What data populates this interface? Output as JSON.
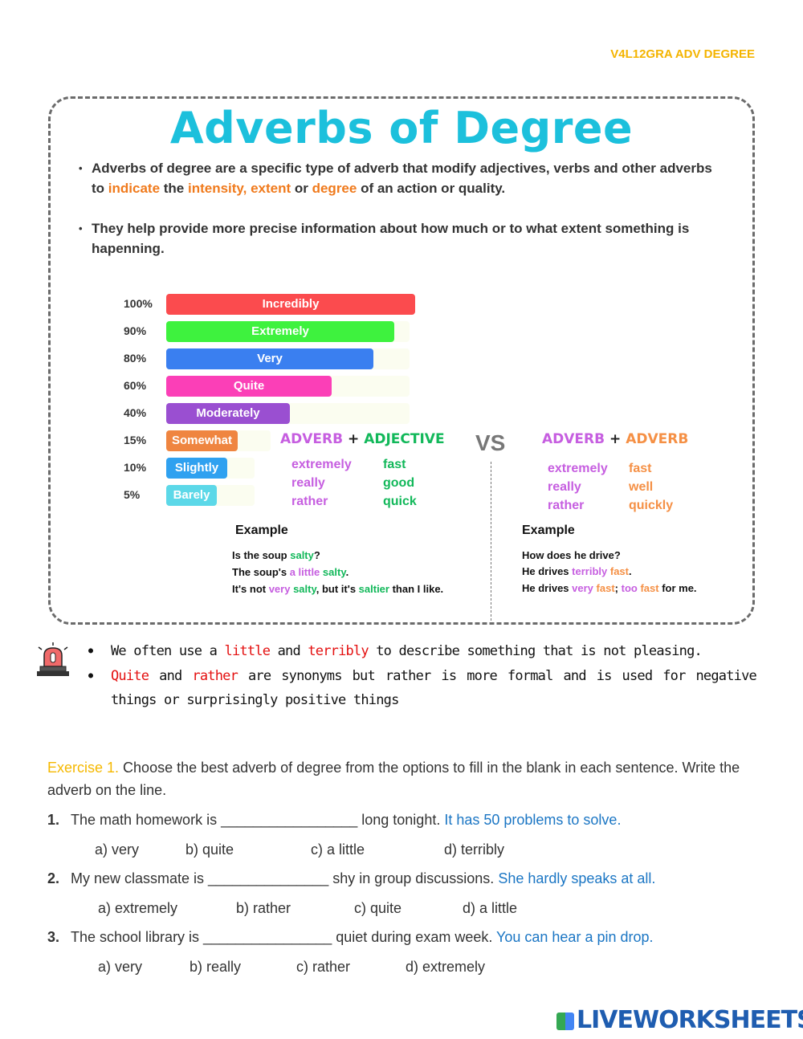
{
  "header_code": "V4L12GRA ADV DEGREE",
  "title": "Adverbs of Degree",
  "bullets": [
    [
      {
        "t": "Adverbs of degree are a specific type of adverb that modify adjectives, verbs and other adverbs to "
      },
      {
        "t": "indicate",
        "c": "o"
      },
      {
        "t": " the "
      },
      {
        "t": "intensity, extent",
        "c": "o"
      },
      {
        "t": " or "
      },
      {
        "t": "degree",
        "c": "o"
      },
      {
        "t": " of an action or quality."
      }
    ],
    [
      {
        "t": "They help provide more precise information about how much or to what extent something is hapenning."
      }
    ]
  ],
  "scale": [
    {
      "pct": "100%",
      "value": 100,
      "label": "Incredibly",
      "color": "#fb4b4e"
    },
    {
      "pct": "90%",
      "value": 90,
      "label": "Extremely",
      "color": "#3ef23e"
    },
    {
      "pct": "80%",
      "value": 80,
      "label": "Very",
      "color": "#3a7ff0"
    },
    {
      "pct": "60%",
      "value": 60,
      "label": "Quite",
      "color": "#fb3fb7"
    },
    {
      "pct": "40%",
      "value": 40,
      "label": "Moderately",
      "color": "#9a4fd1"
    },
    {
      "pct": "15%",
      "value": 15,
      "label": "Somewhat",
      "color": "#ef8540"
    },
    {
      "pct": "10%",
      "value": 10,
      "label": "Slightly",
      "color": "#2fa1f0"
    },
    {
      "pct": "5%",
      "value": 5,
      "label": "Barely",
      "color": "#5cd8e8"
    }
  ],
  "left": {
    "head_a": "ADVERB",
    "plus": "+",
    "head_b": "ADJECTIVE",
    "adverbs": [
      "extremely",
      "really",
      "rather"
    ],
    "words": [
      "fast",
      "good",
      "quick"
    ],
    "example_title": "Example",
    "examples": [
      [
        {
          "t": "Is the soup "
        },
        {
          "t": "salty",
          "c": "gr"
        },
        {
          "t": "?"
        }
      ],
      [
        {
          "t": "The soup's "
        },
        {
          "t": "a little",
          "c": "pu"
        },
        {
          "t": " "
        },
        {
          "t": "salty",
          "c": "gr"
        },
        {
          "t": "."
        }
      ],
      [
        {
          "t": "It's not "
        },
        {
          "t": "very",
          "c": "pu"
        },
        {
          "t": " "
        },
        {
          "t": "salty",
          "c": "gr"
        },
        {
          "t": ", but it's "
        },
        {
          "t": "saltier",
          "c": "gr"
        },
        {
          "t": " than  I like."
        }
      ]
    ]
  },
  "vs": "VS",
  "right": {
    "head_a": "ADVERB",
    "plus": "+",
    "head_b": "ADVERB",
    "adverbs": [
      "extremely",
      "really",
      "rather"
    ],
    "words": [
      "fast",
      "well",
      "quickly"
    ],
    "example_title": "Example",
    "examples": [
      [
        {
          "t": "How does he drive?"
        }
      ],
      [
        {
          "t": "He drives "
        },
        {
          "t": "terribly",
          "c": "pu"
        },
        {
          "t": " "
        },
        {
          "t": "fast",
          "c": "or"
        },
        {
          "t": "."
        }
      ],
      [
        {
          "t": "He drives "
        },
        {
          "t": "very",
          "c": "pu"
        },
        {
          "t": " "
        },
        {
          "t": "fast",
          "c": "or"
        },
        {
          "t": "; "
        },
        {
          "t": "too",
          "c": "pu"
        },
        {
          "t": " "
        },
        {
          "t": "fast",
          "c": "or"
        },
        {
          "t": " for me."
        }
      ]
    ]
  },
  "notes": [
    [
      {
        "t": "We often use a "
      },
      {
        "t": "little",
        "c": "r"
      },
      {
        "t": " and "
      },
      {
        "t": "terribly",
        "c": "r"
      },
      {
        "t": " to describe something that is not pleasing."
      }
    ],
    [
      {
        "t": "Quite",
        "c": "r"
      },
      {
        "t": " and "
      },
      {
        "t": "rather",
        "c": "r"
      },
      {
        "t": " are synonyms but rather is more formal and is used for negative things or surprisingly positive things"
      }
    ]
  ],
  "exercise": {
    "label": "Exercise 1.",
    "instruction": " Choose the best adverb of degree from the options to fill in the blank in each sentence. Write the adverb on the line.",
    "questions": [
      {
        "n": "1.",
        "text": "The math homework is _________________ long tonight. ",
        "hint": "It has 50 problems to solve.",
        "options": [
          "a) very",
          "b) quite",
          "c) a little",
          "d) terribly"
        ]
      },
      {
        "n": "2.",
        "text": "My new classmate is _______________ shy in group discussions.  ",
        "hint": "She hardly speaks at all.",
        "options": [
          "a) extremely",
          "b) rather",
          "c) quite",
          "d) a little"
        ]
      },
      {
        "n": "3.",
        "text": "The school library is ________________ quiet during exam week. ",
        "hint": "You can hear a pin drop.",
        "options": [
          "a) very",
          "b) really",
          "c) rather",
          "d) extremely"
        ]
      }
    ]
  },
  "footer_logo": "LIVEWORKSHEETS"
}
